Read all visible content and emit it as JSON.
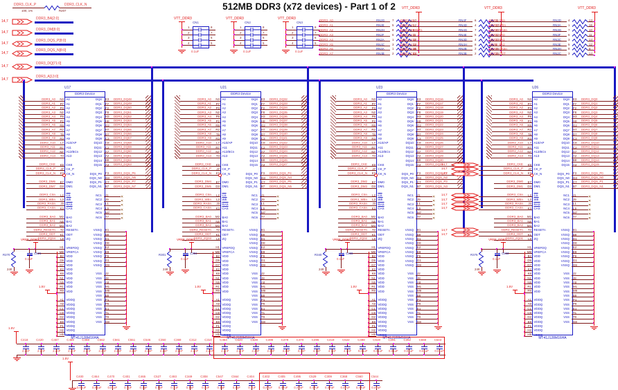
{
  "title": "512MB DDR3 (x72 devices) - Part 1 of 2",
  "page_ref": "14,7",
  "power": {
    "vtt": "VTT_DDR3",
    "vref": "VREF_DDR3",
    "v15": "1.5V"
  },
  "clock_res": {
    "p": "DDR3_CLK_P",
    "n": "DDR3_CLK_N",
    "value": "100, 1%",
    "ref": "R207"
  },
  "bus_entries": [
    {
      "label": "DDR3_BA[2:0]",
      "dir": "out"
    },
    {
      "label": "DDR3_DM[8:0]",
      "dir": "out"
    },
    {
      "label": "DDR3_DQS_P[8:0]",
      "dir": "bidir"
    },
    {
      "label": "DDR3_DQS_N[8:0]",
      "dir": "bidir"
    },
    {
      "label": "DDR3_DQ[71:0]",
      "dir": "bidir"
    },
    {
      "label": "DDR3_A[13:0]",
      "dir": "out"
    }
  ],
  "cap_networks": [
    {
      "ref": "CN1",
      "value": "0.1uF",
      "left_pins": [
        "1",
        "2",
        "3",
        "4"
      ],
      "right_pins": [
        "8",
        "7",
        "6",
        "5"
      ]
    },
    {
      "ref": "CN2",
      "value": "0.1uF",
      "left_pins": [
        "1",
        "2",
        "3",
        "4"
      ],
      "right_pins": [
        "8",
        "7",
        "6",
        "5"
      ]
    },
    {
      "ref": "CN3",
      "value": "0.1uF",
      "left_pins": [
        "1",
        "2",
        "3",
        "4"
      ],
      "right_pins": [
        "8",
        "7",
        "6",
        "5"
      ]
    }
  ],
  "term_groups": [
    {
      "rows": [
        [
          "DDR3_A0",
          "RN2G",
          "7",
          "10"
        ],
        [
          "DDR3_A1",
          "RN2E",
          "5",
          "12"
        ],
        [
          "DDR3_A2",
          "RN2H",
          "8",
          "9"
        ],
        [
          "DDR3_A3",
          "RN2F",
          "6",
          "11"
        ],
        [
          "DDR3_A4",
          "RN2A",
          "1",
          "16"
        ],
        [
          "DDR3_A5",
          "RN4C",
          "3",
          "14"
        ],
        [
          "DDR3_A6",
          "RN4A",
          "1",
          "16"
        ],
        [
          "DDR3_A7",
          "RN4B",
          "2",
          "15"
        ]
      ]
    },
    {
      "rows": [
        [
          "DDR3_A8",
          "RN4F",
          "6",
          "11"
        ],
        [
          "DDR3_A9",
          "RN4D",
          "4",
          "13"
        ],
        [
          "DDR3_RESETn",
          "RN4G",
          "7",
          "10"
        ],
        [
          "DDR3_A11",
          "RN4E",
          "5",
          "12"
        ],
        [
          "DDR3_A12",
          "RN3D",
          "4",
          "13"
        ],
        [
          "DDR3_A13",
          "RN4H",
          "8",
          "9"
        ],
        [
          "DDR3_A10",
          "RN2B",
          "2",
          "15"
        ],
        [
          "DDR3_CKE",
          "RN3B",
          "2",
          "15"
        ]
      ]
    },
    {
      "rows": [
        [
          "DDR3_CSn",
          "RN2D",
          "4",
          "13"
        ],
        [
          "DDR3_WEn",
          "RN3A",
          "1",
          "16"
        ],
        [
          "DDR3_RASn",
          "RN3G",
          "7",
          "10"
        ],
        [
          "DDR3_BA0",
          "RN3F",
          "6",
          "11"
        ],
        [
          "DDR3_BA1",
          "RN3C",
          "3",
          "14"
        ],
        [
          "DDR3_BA2",
          "RN3E",
          "5",
          "12"
        ],
        [
          "DDR3_CASn",
          "RN3H",
          "8",
          "9"
        ],
        [
          "DDR3_ODT",
          "RN2C",
          "3",
          "14"
        ]
      ]
    }
  ],
  "device_template": {
    "name": "DDR3 Device",
    "part_number": "MT41J128M16HA",
    "addr": [
      [
        "DDR3_A0",
        "A0",
        "N3"
      ],
      [
        "DDR3_A1",
        "A1",
        "P7"
      ],
      [
        "DDR3_A2",
        "A2",
        "P3"
      ],
      [
        "DDR3_A3",
        "A3",
        "N2"
      ],
      [
        "DDR3_A4",
        "A4",
        "P8"
      ],
      [
        "DDR3_A5",
        "A5",
        "P2"
      ],
      [
        "DDR3_A6",
        "A6",
        "R8"
      ],
      [
        "DDR3_A7",
        "A7",
        "R2"
      ],
      [
        "DDR3_A8",
        "A8",
        "T8"
      ],
      [
        "DDR3_A9",
        "A9",
        "R3"
      ],
      [
        "DDR3_A10",
        "A10/AP",
        "L7"
      ],
      [
        "DDR3_A11",
        "A11",
        "R7"
      ],
      [
        "DDR3_A12",
        "A12/BCn",
        "N7"
      ],
      [
        "DDR3_A13",
        "A13",
        "T3"
      ]
    ],
    "clk": [
      [
        "DDR3_CKE",
        "CKE",
        "K9"
      ],
      [
        "DDR3_CLK_P",
        "CK_P",
        "J7"
      ],
      [
        "DDR3_CLK_N",
        "CK_N",
        "K7"
      ]
    ],
    "dm_rows": [
      [
        "DM0",
        "E7"
      ],
      [
        "DM1",
        "D3"
      ]
    ],
    "ctrl": [
      [
        "DDR3_CSn",
        "CS",
        "L2"
      ],
      [
        "DDR3_WEn",
        "WE",
        "L3"
      ],
      [
        "DDR3_RASn",
        "RAS",
        "J3"
      ],
      [
        "DDR3_CASn",
        "CAS",
        "K3"
      ]
    ],
    "ba": [
      [
        "DDR3_BA0",
        "BA0",
        "M2"
      ],
      [
        "DDR3_BA1",
        "BA1",
        "N8"
      ],
      [
        "DDR3_BA2",
        "BA2",
        "M3"
      ],
      [
        "DDR3_RESETn",
        "RESETn",
        "T2"
      ],
      [
        "DDR3_ODT",
        "ODT",
        "K1"
      ]
    ],
    "zq_row": [
      "ZQ",
      "L8"
    ],
    "vref_rows": [
      [
        "VREFDQ",
        "H1"
      ],
      [
        "VREFCA",
        "M8"
      ]
    ],
    "vdd_name": "VDD",
    "vdd_pins": [
      "B2",
      "D9",
      "G7",
      "K2",
      "K8",
      "N1",
      "N9",
      "R1",
      "R9"
    ],
    "vddq_name": "VDDQ",
    "vddq_pins": [
      "A1",
      "A8",
      "C1",
      "C9",
      "D2",
      "E8",
      "F1",
      "H2",
      "H9"
    ],
    "dq_names": [
      "DQ0",
      "DQ1",
      "DQ2",
      "DQ3",
      "DQ4",
      "DQ5",
      "DQ6",
      "DQ7",
      "DQ8",
      "DQ9",
      "DQ10",
      "DQ11",
      "DQ12",
      "DQ13",
      "DQ14",
      "DQ15"
    ],
    "dq_pins": [
      "E3",
      "F7",
      "F2",
      "F8",
      "H3",
      "H8",
      "G2",
      "H7",
      "D7",
      "C3",
      "C8",
      "C2",
      "A7",
      "A2",
      "B8",
      "A3"
    ],
    "dqs_names": [
      "DQS_P0",
      "DQS_N0",
      "DQS_P1",
      "DQS_N1"
    ],
    "dqs_pins": [
      "F3",
      "G3",
      "C7",
      "B7"
    ],
    "nc_rows": [
      [
        "NC1",
        "J1"
      ],
      [
        "NC2",
        "J9"
      ],
      [
        "NC3",
        "L1"
      ],
      [
        "NC4",
        "L9"
      ],
      [
        "NC5",
        "M7"
      ],
      [
        "NC6",
        "T7"
      ]
    ],
    "vssq_name": "VSSQ",
    "vssq_pins": [
      "B1",
      "B9",
      "D1",
      "D8",
      "E2",
      "E9",
      "F9",
      "G1",
      "G9"
    ],
    "vss_name": "VSS",
    "vss_pins": [
      "J2",
      "J8",
      "A9",
      "M1",
      "M9",
      "B9",
      "P1",
      "P9",
      "E1",
      "T1",
      "T9",
      "G8"
    ],
    "vref_res_value": "240",
    "vref_cap_value": "0.1uF"
  },
  "devices": [
    {
      "refdes": "U17",
      "zq_signal": "DDR3_ZQ04",
      "res_ref": "R270",
      "cap_ref": "C521",
      "dm_signals": [
        "DDR3_DM6",
        "DDR3_DM7"
      ],
      "dqs_signals": [
        "DDR3_DQS_P6",
        "DDR3_DQS_N6",
        "DDR3_DQS_P7",
        "DDR3_DQS_N7"
      ],
      "dq_signals": [
        "DDR3_DQ48",
        "DDR3_DQ49",
        "DDR3_DQ50",
        "DDR3_DQ51",
        "DDR3_DQ52",
        "DDR3_DQ53",
        "DDR3_DQ54",
        "DDR3_DQ55",
        "DDR3_DQ56",
        "DDR3_DQ57",
        "DDR3_DQ58",
        "DDR3_DQ59",
        "DDR3_DQ60",
        "DDR3_DQ61",
        "DDR3_DQ62",
        "DDR3_DQ63"
      ],
      "page_arrows": false
    },
    {
      "refdes": "U21",
      "zq_signal": "DDR3_ZQ03",
      "res_ref": "R301",
      "cap_ref": "C351",
      "dm_signals": [
        "DDR3_DM4",
        "DDR3_DM5"
      ],
      "dqs_signals": [
        "DDR3_DQS_P4",
        "DDR3_DQS_N4",
        "DDR3_DQS_P5",
        "DDR3_DQS_N5"
      ],
      "dq_signals": [
        "DDR3_DQ32",
        "DDR3_DQ33",
        "DDR3_DQ34",
        "DDR3_DQ35",
        "DDR3_DQ36",
        "DDR3_DQ37",
        "DDR3_DQ38",
        "DDR3_DQ39",
        "DDR3_DQ40",
        "DDR3_DQ41",
        "DDR3_DQ42",
        "DDR3_DQ43",
        "DDR3_DQ44",
        "DDR3_DQ45",
        "DDR3_DQ46",
        "DDR3_DQ47"
      ],
      "page_arrows": false
    },
    {
      "refdes": "U23",
      "zq_signal": "DDR3_ZQ02",
      "res_ref": "R340",
      "cap_ref": "C466",
      "dm_signals": [
        "DDR3_DM2",
        "DDR3_DM3"
      ],
      "dqs_signals": [
        "DDR3_DQS_P2",
        "DDR3_DQS_N2",
        "DDR3_DQS_P3",
        "DDR3_DQS_N3"
      ],
      "dq_signals": [
        "DDR3_DQ16",
        "DDR3_DQ17",
        "DDR3_DQ18",
        "DDR3_DQ19",
        "DDR3_DQ20",
        "DDR3_DQ21",
        "DDR3_DQ22",
        "DDR3_DQ23",
        "DDR3_DQ24",
        "DDR3_DQ25",
        "DDR3_DQ26",
        "DDR3_DQ27",
        "DDR3_DQ28",
        "DDR3_DQ29",
        "DDR3_DQ30",
        "DDR3_DQ31"
      ],
      "page_arrows": false
    },
    {
      "refdes": "U26",
      "zq_signal": "DDR3_ZQ01",
      "res_ref": "R376",
      "cap_ref": "C563",
      "dm_signals": [
        "DDR3_DM0",
        "DDR3_DM1"
      ],
      "dqs_signals": [
        "DDR3_DQS_P0",
        "DDR3_DQS_N0",
        "DDR3_DQS_P1",
        "DDR3_DQS_N1"
      ],
      "dq_signals": [
        "DDR3_DQ0",
        "DDR3_DQ1",
        "DDR3_DQ2",
        "DDR3_DQ3",
        "DDR3_DQ4",
        "DDR3_DQ5",
        "DDR3_DQ6",
        "DDR3_DQ7",
        "DDR3_DQ8",
        "DDR3_DQ9",
        "DDR3_DQ10",
        "DDR3_DQ11",
        "DDR3_DQ12",
        "DDR3_DQ13",
        "DDR3_DQ14",
        "DDR3_DQ15"
      ],
      "page_arrows": true
    }
  ],
  "arrow_signal_groups": [
    "DDR3_CKE",
    "DDR3_CLK_P",
    "DDR3_CLK_N",
    "DDR3_CSn",
    "DDR3_WEn",
    "DDR3_RASn",
    "DDR3_CASn",
    "DDR3_RESETn",
    "DDR3_ODT"
  ],
  "caps_row1": [
    [
      "C418",
      "2.2nF"
    ],
    [
      "C420",
      "2.2nF"
    ],
    [
      "C467",
      "2.2nF"
    ],
    [
      "C469",
      "2.2nF"
    ],
    [
      "C468",
      "2.2nF"
    ],
    [
      "C562",
      "2.2nF"
    ],
    [
      "C561",
      "2.2nF"
    ],
    [
      "C551",
      "2.2nF"
    ],
    [
      "C546",
      "2.2nF"
    ],
    [
      "C350",
      "2.2nF"
    ],
    [
      "C369",
      "2.2nF"
    ],
    [
      "C312",
      "2.2nF"
    ],
    [
      "C310",
      "2.2nF"
    ],
    [
      "C454",
      "2.2nF"
    ],
    [
      "C520",
      "2.2nF"
    ],
    [
      "C528",
      "2.2nF"
    ],
    [
      "C499",
      "2.2nF"
    ],
    [
      "C479",
      "3.3nF"
    ],
    [
      "C370",
      "3.3nF"
    ],
    [
      "C496",
      "4.7nF"
    ],
    [
      "C419",
      "4.7nF"
    ],
    [
      "C522",
      "4.7nF"
    ],
    [
      "C498",
      "0.01uF"
    ],
    [
      "C519",
      "0.01uF"
    ],
    [
      "C291",
      "0.01uF"
    ],
    [
      "C352",
      "0.01uF"
    ],
    [
      "C559",
      "0.01uF"
    ],
    [
      "C543",
      "0.01uF"
    ]
  ],
  "caps_row2": [
    [
      "C400",
      "0.01uF"
    ],
    [
      "C464",
      "0.01uF"
    ],
    [
      "C470",
      "0.01uF"
    ],
    [
      "C401",
      "0.1uF"
    ],
    [
      "C465",
      "0.1uF"
    ],
    [
      "C527",
      "0.1uF"
    ],
    [
      "C493",
      "0.1uF"
    ],
    [
      "C349",
      "0.1uF"
    ],
    [
      "C308",
      "0.1uF"
    ],
    [
      "C547",
      "0.1uF"
    ],
    [
      "C564",
      "0.1uF"
    ],
    [
      "C404",
      "0.1uF"
    ],
    [
      "C402",
      "0.47uF"
    ],
    [
      "C405",
      "0.47uF"
    ],
    [
      "C495",
      "0.47uF"
    ],
    [
      "C529",
      "0.47uF"
    ],
    [
      "C309",
      "0.47uF"
    ],
    [
      "C368",
      "0.47uF"
    ],
    [
      "C560",
      "0.47uF"
    ],
    [
      "C544",
      "0.47uF"
    ]
  ]
}
